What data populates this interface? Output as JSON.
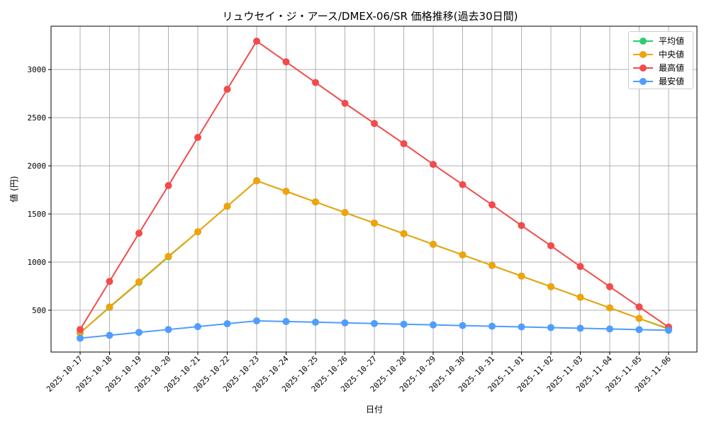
{
  "chart_data": {
    "type": "line",
    "title": "リュウセイ・ジ・アース/DMEX-06/SR 価格推移(過去30日間)",
    "xlabel": "日付",
    "ylabel": "値 (円)",
    "x": [
      "2025-10-17",
      "2025-10-18",
      "2025-10-19",
      "2025-10-20",
      "2025-10-21",
      "2025-10-22",
      "2025-10-23",
      "2025-10-24",
      "2025-10-25",
      "2025-10-26",
      "2025-10-27",
      "2025-10-28",
      "2025-10-29",
      "2025-10-30",
      "2025-10-31",
      "2025-11-01",
      "2025-11-02",
      "2025-11-03",
      "2025-11-04",
      "2025-11-05",
      "2025-11-06"
    ],
    "yticks": [
      500,
      1000,
      1500,
      2000,
      2500,
      3000
    ],
    "ylim": [
      66,
      3450
    ],
    "grid": true,
    "legend_position": "upper right",
    "series": [
      {
        "name": "平均値",
        "color": "#2ecc71",
        "values": [
          265,
          530,
          790,
          1055,
          1315,
          1580,
          1845,
          1735,
          1625,
          1515,
          1405,
          1295,
          1185,
          1075,
          965,
          855,
          745,
          635,
          525,
          415,
          305
        ]
      },
      {
        "name": "中央値",
        "color": "#f0a30a",
        "values": [
          265,
          535,
          795,
          1060,
          1315,
          1580,
          1845,
          1735,
          1625,
          1515,
          1405,
          1295,
          1185,
          1075,
          965,
          855,
          745,
          635,
          525,
          415,
          310
        ]
      },
      {
        "name": "最高値",
        "color": "#f24b4b",
        "values": [
          300,
          800,
          1300,
          1795,
          2295,
          2795,
          3295,
          3080,
          2865,
          2650,
          2440,
          2230,
          2015,
          1805,
          1595,
          1380,
          1170,
          955,
          745,
          535,
          325
        ]
      },
      {
        "name": "最安値",
        "color": "#4f9dff",
        "values": [
          210,
          240,
          270,
          300,
          330,
          360,
          390,
          383,
          376,
          369,
          362,
          355,
          348,
          341,
          334,
          327,
          320,
          313,
          306,
          299,
          292
        ]
      }
    ]
  }
}
